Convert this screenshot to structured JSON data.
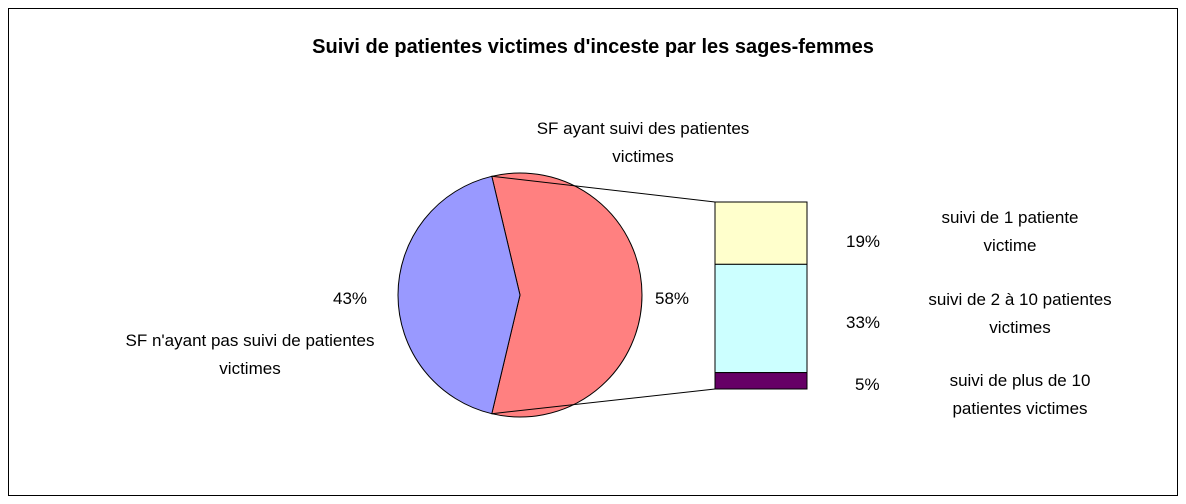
{
  "chart_data": {
    "type": "pie-of-bar",
    "title": "Suivi de patientes victimes d'inceste par les sages-femmes",
    "pie": {
      "categories": [
        "SF n'ayant pas suivi de patientes victimes",
        "SF ayant suivi des patientes victimes"
      ],
      "values": [
        43,
        58
      ],
      "value_labels": [
        "43%",
        "58%"
      ],
      "colors": [
        "#9999ff",
        "#ff8080"
      ]
    },
    "bar": {
      "categories": [
        "suivi de 1 patiente victime",
        "suivi de 2 à 10 patientes victimes",
        "suivi de plus de 10 patientes victimes"
      ],
      "values": [
        19,
        33,
        5
      ],
      "value_labels": [
        "19%",
        "33%",
        "5%"
      ],
      "colors": [
        "#ffffcc",
        "#ccffff",
        "#660066"
      ]
    }
  }
}
